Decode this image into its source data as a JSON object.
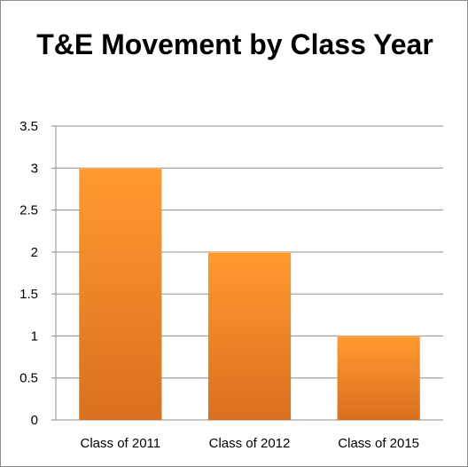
{
  "chart_data": {
    "type": "bar",
    "title": "T&E Movement by Class Year",
    "xlabel": "",
    "ylabel": "",
    "categories": [
      "Class of 2011",
      "Class of 2012",
      "Class of 2015"
    ],
    "values": [
      3,
      2,
      1
    ],
    "ylim": [
      0,
      3.5
    ],
    "yticks": [
      "0",
      "0.5",
      "1",
      "1.5",
      "2",
      "2.5",
      "3",
      "3.5"
    ],
    "grid": true,
    "legend": "none",
    "colors": {
      "bar_top": "#ff9a30",
      "bar_bottom": "#d9701f",
      "grid": "#8c8c8c",
      "axis": "#8c8c8c"
    }
  }
}
